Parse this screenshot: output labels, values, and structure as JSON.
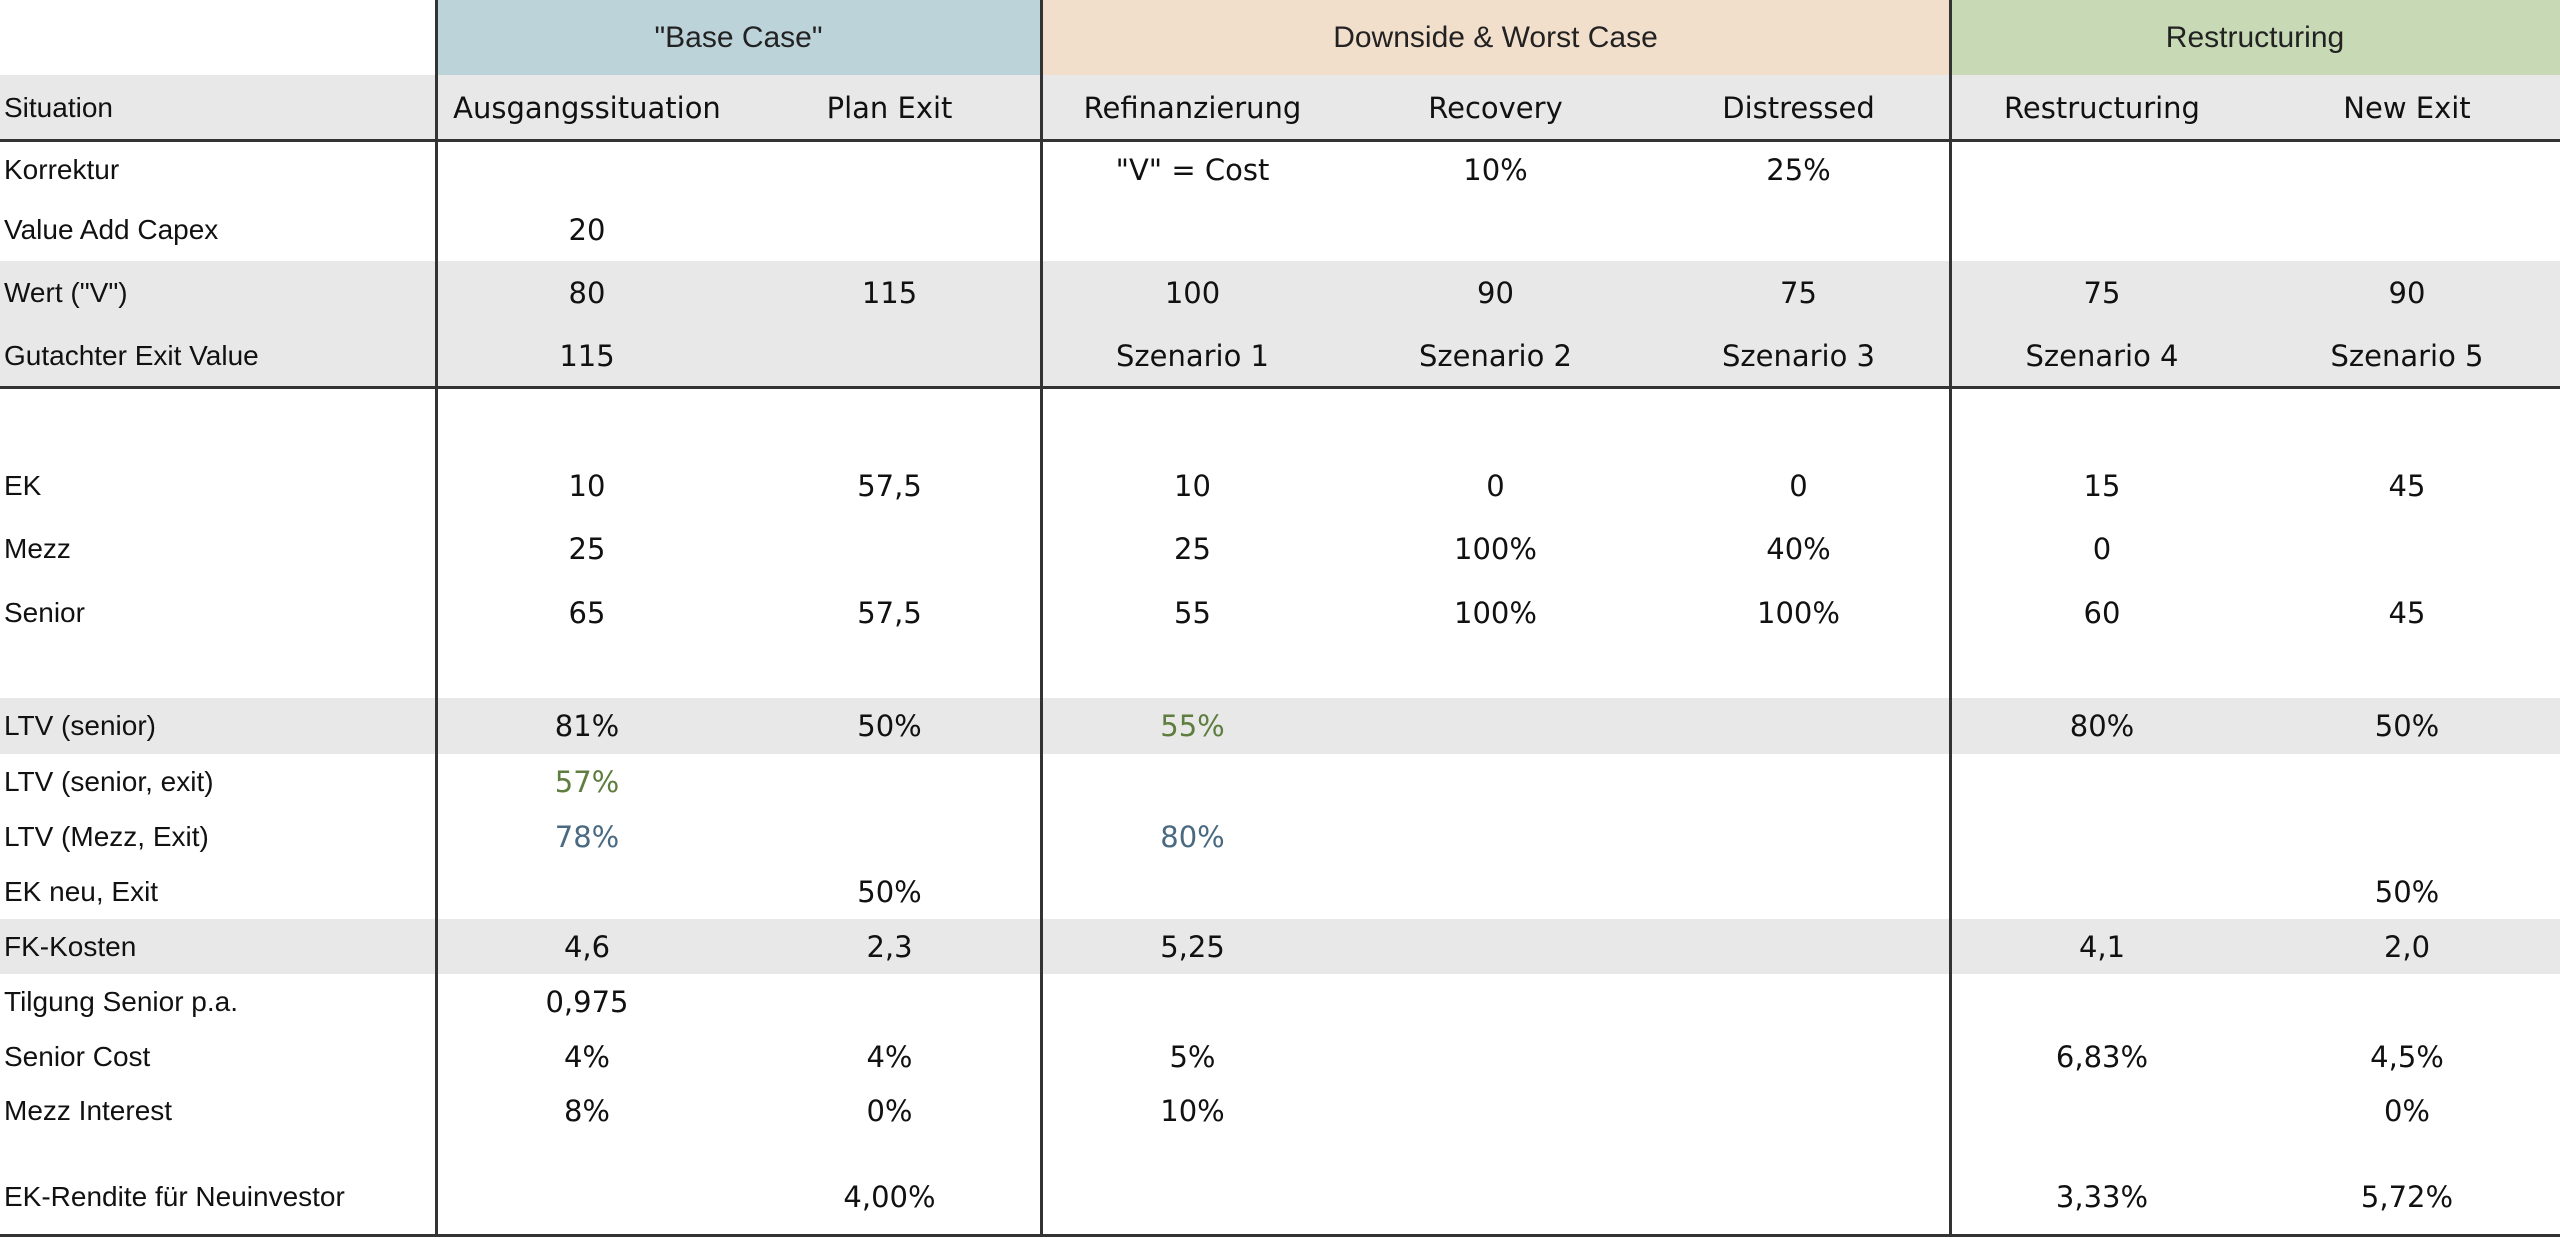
{
  "header": {
    "groups": [
      {
        "label": "\"Base Case\""
      },
      {
        "label": "Downside & Worst Case"
      },
      {
        "label": "Restructuring"
      }
    ],
    "columns": [
      "Situation",
      "Ausgangssituation",
      "Plan Exit",
      "Refinanzierung",
      "Recovery",
      "Distressed",
      "Restructuring",
      "New Exit"
    ]
  },
  "rows": [
    {
      "label": "Korrektur",
      "cells": [
        null,
        null,
        "\"V\" = Cost",
        "10%",
        "25%",
        null,
        null
      ]
    },
    {
      "label": "Value Add Capex",
      "cells": [
        "20",
        null,
        null,
        null,
        null,
        null,
        null
      ]
    },
    {
      "label": "Wert (\"V\")",
      "cells": [
        "80",
        "115",
        "100",
        "90",
        "75",
        "75",
        "90"
      ]
    },
    {
      "label": "Gutachter Exit Value",
      "cells": [
        "115",
        null,
        "Szenario 1",
        "Szenario 2",
        "Szenario 3",
        "Szenario 4",
        "Szenario 5"
      ]
    },
    {
      "label": "EK",
      "cells": [
        "10",
        "57,5",
        "10",
        "0",
        "0",
        "15",
        "45"
      ]
    },
    {
      "label": "Mezz",
      "cells": [
        "25",
        null,
        "25",
        "100%",
        "40%",
        "0",
        null
      ]
    },
    {
      "label": "Senior",
      "cells": [
        "65",
        "57,5",
        "55",
        "100%",
        "100%",
        "60",
        "45"
      ]
    },
    {
      "label": "LTV (senior)",
      "cells": [
        "81%",
        "50%",
        "55%",
        null,
        null,
        "80%",
        "50%"
      ]
    },
    {
      "label": "LTV (senior, exit)",
      "cells": [
        "57%",
        null,
        null,
        null,
        null,
        null,
        null
      ]
    },
    {
      "label": "LTV (Mezz, Exit)",
      "cells": [
        "78%",
        null,
        "80%",
        null,
        null,
        null,
        null
      ]
    },
    {
      "label": "EK neu, Exit",
      "cells": [
        null,
        "50%",
        null,
        null,
        null,
        null,
        "50%"
      ]
    },
    {
      "label": "FK-Kosten",
      "cells": [
        "4,6",
        "2,3",
        "5,25",
        null,
        null,
        "4,1",
        "2,0"
      ]
    },
    {
      "label": "Tilgung Senior p.a.",
      "cells": [
        "0,975",
        null,
        null,
        null,
        null,
        null,
        null
      ]
    },
    {
      "label": "Senior Cost",
      "cells": [
        "4%",
        "4%",
        "5%",
        null,
        null,
        "6,83%",
        "4,5%"
      ]
    },
    {
      "label": "Mezz Interest",
      "cells": [
        "8%",
        "0%",
        "10%",
        null,
        null,
        null,
        "0%"
      ]
    },
    {
      "label": "EK-Rendite für Neuinvestor",
      "cells": [
        null,
        "4,00%",
        null,
        null,
        null,
        "3,33%",
        "5,72%"
      ]
    }
  ]
}
